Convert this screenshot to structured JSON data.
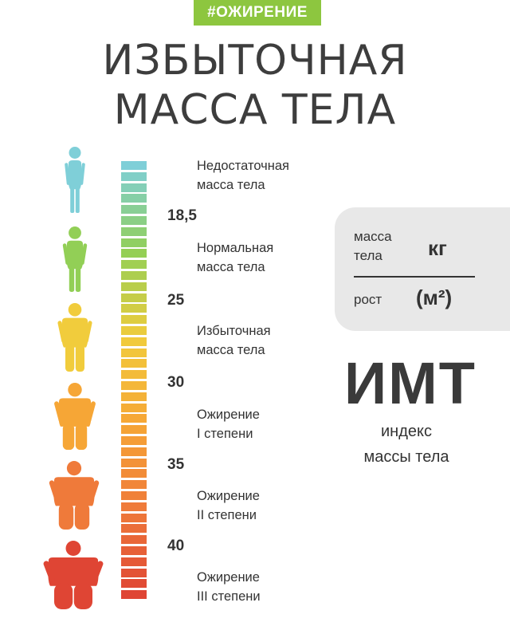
{
  "tag": "#ОЖИРЕНИЕ",
  "title": {
    "line1": "ИЗБЫТОЧНАЯ",
    "line2": "МАССА ТЕЛА"
  },
  "categories": [
    {
      "line1": "Недостаточная",
      "line2": "масса тела",
      "color": "#7fcfd8"
    },
    {
      "line1": "Нормальная",
      "line2": "масса тела",
      "color": "#92cf56"
    },
    {
      "line1": "Избыточная",
      "line2": "масса тела",
      "color": "#f1cc3c"
    },
    {
      "line1": "Ожирение",
      "line2": "I степени",
      "color": "#f6a636"
    },
    {
      "line1": "Ожирение",
      "line2": "II степени",
      "color": "#ef7a3a"
    },
    {
      "line1": "Ожирение",
      "line2": "III степени",
      "color": "#df4534"
    }
  ],
  "thresholds": [
    "18,5",
    "25",
    "30",
    "35",
    "40"
  ],
  "formula": {
    "numerator_line1": "масса",
    "numerator_line2": "тела",
    "numerator_unit": "кг",
    "denominator": "рост",
    "denominator_unit": "(м²)"
  },
  "imt": {
    "abbr": "ИМТ",
    "line1": "индекс",
    "line2": "массы тела"
  }
}
